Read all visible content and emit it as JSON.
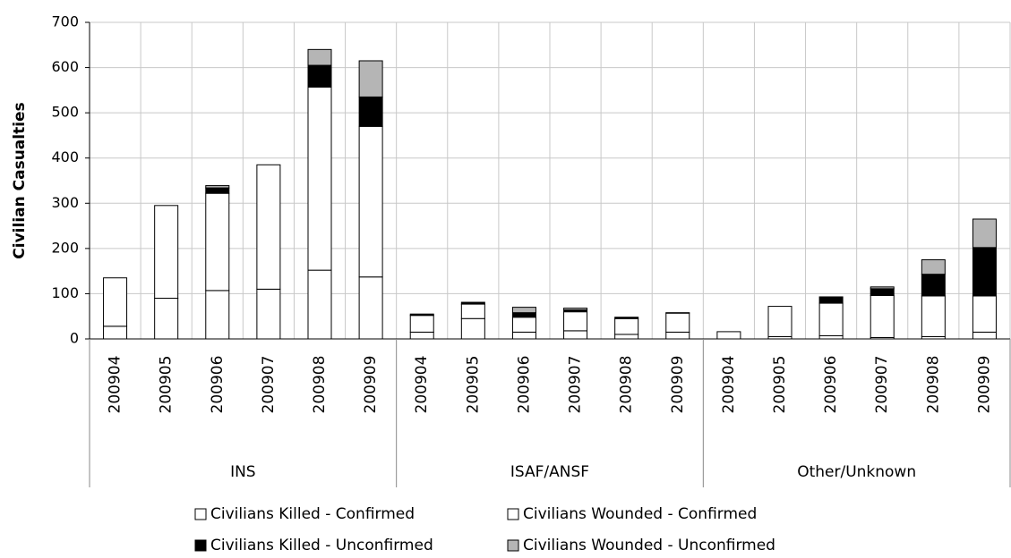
{
  "chart_data": {
    "type": "stacked_bar",
    "y_label": "Civilian Casualties",
    "groups": [
      {
        "name": "INS",
        "categories": [
          "200904",
          "200905",
          "200906",
          "200907",
          "200908",
          "200909"
        ]
      },
      {
        "name": "ISAF/ANSF",
        "categories": [
          "200904",
          "200905",
          "200906",
          "200907",
          "200908",
          "200909"
        ]
      },
      {
        "name": "Other/Unknown",
        "categories": [
          "200904",
          "200905",
          "200906",
          "200907",
          "200908",
          "200909"
        ]
      }
    ],
    "series": [
      {
        "name": "Civilians Killed - Confirmed",
        "color": "#ffffff",
        "values": [
          28,
          90,
          107,
          110,
          152,
          137,
          15,
          45,
          15,
          18,
          10,
          15,
          0,
          5,
          7,
          3,
          5,
          15
        ]
      },
      {
        "name": "Civilians Wounded - Confirmed",
        "color": "#ffffff",
        "values": [
          107,
          205,
          215,
          275,
          405,
          333,
          37,
          32,
          33,
          42,
          35,
          42,
          16,
          67,
          72,
          93,
          90,
          80
        ]
      },
      {
        "name": "Civilians Killed - Unconfirmed",
        "color": "#000000",
        "values": [
          0,
          0,
          12,
          0,
          48,
          65,
          3,
          4,
          10,
          4,
          3,
          1,
          0,
          0,
          14,
          15,
          48,
          107
        ]
      },
      {
        "name": "Civilians Wounded - Unconfirmed",
        "color": "#b5b5b5",
        "values": [
          0,
          0,
          5,
          0,
          35,
          80,
          0,
          0,
          12,
          4,
          0,
          0,
          0,
          0,
          0,
          4,
          32,
          63
        ]
      }
    ],
    "ylim": [
      0,
      700
    ],
    "yticks": [
      0,
      100,
      200,
      300,
      400,
      500,
      600,
      700
    ],
    "grid": true
  }
}
